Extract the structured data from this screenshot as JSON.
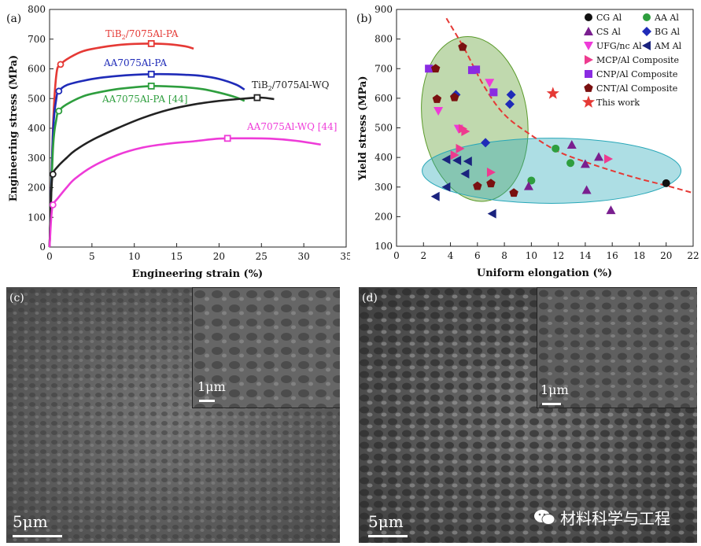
{
  "panels": {
    "a": {
      "label": "(a)"
    },
    "b": {
      "label": "(b)"
    },
    "c": {
      "label": "(c)",
      "scale": "5μm",
      "inset_scale": "1μm"
    },
    "d": {
      "label": "(d)",
      "scale": "5μm",
      "inset_scale": "1μm"
    }
  },
  "watermark": {
    "text": "材料科学与工程"
  },
  "colors": {
    "red": "#e53935",
    "blue": "#1f2bb8",
    "green": "#2e9e3e",
    "black": "#222222",
    "magenta": "#ee3bd8",
    "purple": "#7a1f8f",
    "darkred": "#7a1010",
    "navy": "#1a237e"
  },
  "chart_data": [
    {
      "type": "line",
      "title": "",
      "xlabel": "Engineering strain (%)",
      "ylabel": "Engineering stress (MPa)",
      "xlim": [
        0,
        35
      ],
      "ylim": [
        0,
        800
      ],
      "xticks": [
        0,
        5,
        10,
        15,
        20,
        25,
        30,
        35
      ],
      "yticks": [
        0,
        100,
        200,
        300,
        400,
        500,
        600,
        700,
        800
      ],
      "series": [
        {
          "name": "TiB2/7075Al-PA",
          "label_main": "TiB",
          "label_sub": "2",
          "label_rest": "/7075Al-PA",
          "color": "red",
          "x": [
            0,
            0.4,
            0.8,
            1.3,
            2.5,
            4,
            6,
            8,
            10,
            12,
            14,
            16,
            17
          ],
          "y": [
            0,
            400,
            580,
            615,
            640,
            660,
            672,
            680,
            684,
            685,
            683,
            676,
            668
          ],
          "yield": [
            1.3,
            615
          ],
          "ultimate": [
            12,
            685
          ]
        },
        {
          "name": "AA7075Al-PA",
          "label_main": "AA7075Al-PA",
          "color": "blue",
          "x": [
            0,
            0.4,
            0.8,
            1.1,
            2,
            4,
            6,
            8,
            10,
            12,
            14,
            16,
            18,
            20,
            22,
            23
          ],
          "y": [
            0,
            380,
            500,
            525,
            545,
            560,
            570,
            576,
            580,
            582,
            582,
            580,
            576,
            566,
            547,
            530
          ],
          "yield": [
            1.1,
            525
          ],
          "ultimate": [
            12,
            582
          ]
        },
        {
          "name": "AA7075Al-PA [44]",
          "label_main": "AA7075Al-PA [44]",
          "color": "green",
          "x": [
            0,
            0.4,
            0.8,
            1.1,
            2,
            4,
            6,
            8,
            10,
            12,
            14,
            16,
            18,
            20,
            22,
            23
          ],
          "y": [
            0,
            330,
            430,
            458,
            480,
            508,
            522,
            532,
            538,
            542,
            541,
            538,
            532,
            520,
            504,
            492
          ],
          "yield": [
            1.1,
            458
          ],
          "ultimate": [
            12,
            542
          ]
        },
        {
          "name": "TiB2/7075Al-WQ",
          "label_main": "TiB",
          "label_sub": "2",
          "label_rest": "/7075Al-WQ",
          "color": "black",
          "x": [
            0,
            0.2,
            0.4,
            1,
            2,
            3,
            5,
            8,
            11,
            14,
            17,
            20,
            23,
            25,
            26.5
          ],
          "y": [
            0,
            180,
            245,
            272,
            300,
            325,
            360,
            400,
            435,
            462,
            480,
            492,
            500,
            503,
            498
          ],
          "yield": [
            0.4,
            245
          ],
          "ultimate": [
            24.5,
            503
          ]
        },
        {
          "name": "AA7075Al-WQ [44]",
          "label_main": "AA7075Al-WQ [44]",
          "color": "magenta",
          "x": [
            0,
            0.2,
            0.4,
            1,
            2,
            3,
            5,
            8,
            11,
            14,
            17,
            20,
            23,
            26,
            29,
            32
          ],
          "y": [
            0,
            100,
            142,
            165,
            200,
            230,
            270,
            310,
            335,
            348,
            356,
            365,
            366,
            365,
            358,
            345
          ],
          "yield": [
            0.4,
            142
          ],
          "ultimate": [
            21,
            366
          ]
        }
      ]
    },
    {
      "type": "scatter",
      "title": "",
      "xlabel": "Uniform elongation (%)",
      "ylabel": "Yield stress (MPa)",
      "xlim": [
        0,
        22
      ],
      "ylim": [
        100,
        900
      ],
      "xticks": [
        0,
        2,
        4,
        6,
        8,
        10,
        12,
        14,
        16,
        18,
        20,
        22
      ],
      "yticks": [
        100,
        200,
        300,
        400,
        500,
        600,
        700,
        800,
        900
      ],
      "trend_curve": {
        "x": [
          3.7,
          5,
          6.5,
          8,
          10,
          12,
          14,
          16,
          18,
          20,
          22
        ],
        "y": [
          870,
          770,
          640,
          545,
          475,
          420,
          385,
          355,
          328,
          305,
          280
        ]
      },
      "ellipses": [
        {
          "name": "composites-region",
          "cx": 5.8,
          "cy": 530,
          "rx": 3.9,
          "ry": 280,
          "rotate": -8,
          "color": "#5a9a2a"
        },
        {
          "name": "aluminum-region",
          "cx": 11.5,
          "cy": 355,
          "rx": 9.6,
          "ry": 110,
          "rotate": 0,
          "color": "#28a7b8"
        }
      ],
      "series": [
        {
          "name": "CG Al",
          "marker": "circle",
          "color": "#111111",
          "points": [
            [
              20,
              313
            ]
          ]
        },
        {
          "name": "AA Al",
          "marker": "circle",
          "color": "#2e9e3e",
          "points": [
            [
              10,
              322
            ],
            [
              11.8,
              430
            ],
            [
              12.9,
              381
            ]
          ]
        },
        {
          "name": "CS Al",
          "marker": "triangle-up",
          "color": "#7a1f8f",
          "points": [
            [
              13,
              443
            ],
            [
              14,
              378
            ],
            [
              14.1,
              290
            ],
            [
              15,
              402
            ],
            [
              15.9,
              222
            ],
            [
              9.8,
              303
            ]
          ]
        },
        {
          "name": "BG Al",
          "marker": "diamond",
          "color": "#1f2bb8",
          "points": [
            [
              4.4,
              612
            ],
            [
              6.6,
              450
            ],
            [
              8.4,
              580
            ],
            [
              8.5,
              612
            ]
          ]
        },
        {
          "name": "UFG/nc Al",
          "marker": "triangle-down",
          "color": "#ee3bd8",
          "points": [
            [
              3.1,
              557
            ],
            [
              4.6,
              497
            ],
            [
              6.9,
              652
            ]
          ]
        },
        {
          "name": "AM Al",
          "marker": "triangle-left",
          "color": "#1a237e",
          "points": [
            [
              2.9,
              268
            ],
            [
              3.7,
              300
            ],
            [
              3.7,
              393
            ],
            [
              5.1,
              345
            ],
            [
              5.3,
              387
            ],
            [
              7.1,
              210
            ],
            [
              4.5,
              390
            ]
          ]
        },
        {
          "name": "MCP/Al Composite",
          "marker": "triangle-right",
          "color": "#ee3b8f",
          "points": [
            [
              4.3,
              408
            ],
            [
              4.7,
              430
            ],
            [
              4.9,
              497
            ],
            [
              5.1,
              488
            ],
            [
              7.0,
              350
            ],
            [
              15.7,
              395
            ]
          ]
        },
        {
          "name": "CNP/Al Composite",
          "marker": "square",
          "color": "#8a2be2",
          "points": [
            [
              2.4,
              700
            ],
            [
              5.6,
              695
            ],
            [
              5.9,
              697
            ],
            [
              7.2,
              620
            ]
          ]
        },
        {
          "name": "CNT/Al Composite",
          "marker": "pentagon",
          "color": "#7a1010",
          "points": [
            [
              2.9,
              700
            ],
            [
              3.0,
              597
            ],
            [
              4.3,
              603
            ],
            [
              4.9,
              773
            ],
            [
              6.0,
              303
            ],
            [
              7.0,
              312
            ],
            [
              8.7,
              280
            ]
          ]
        },
        {
          "name": "This work",
          "marker": "star",
          "color": "#e53935",
          "points": [
            [
              11.6,
              616
            ]
          ]
        }
      ]
    }
  ]
}
